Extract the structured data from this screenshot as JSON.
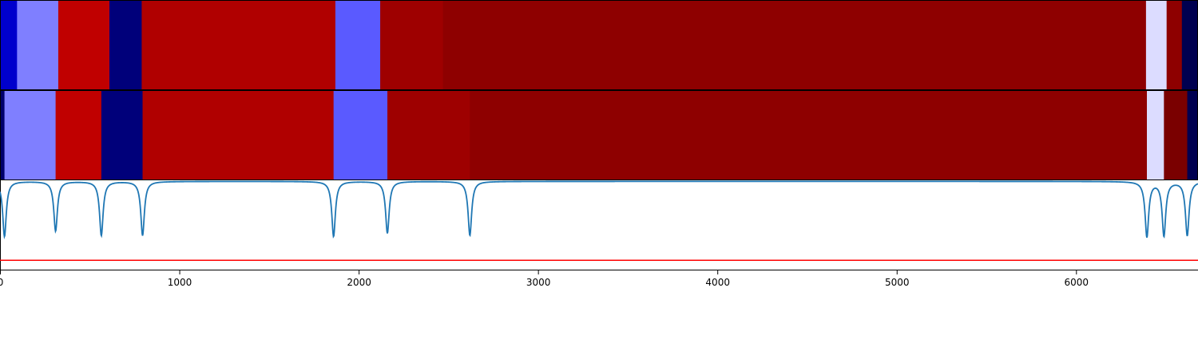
{
  "chart_data": {
    "type": "heatmap",
    "title": "",
    "xlabel": "",
    "ylabel": "",
    "xlim": [
      0,
      6680
    ],
    "x_ticks": [
      0,
      1000,
      2000,
      3000,
      4000,
      5000,
      6000
    ],
    "x_tick_labels": [
      "0",
      "1000",
      "2000",
      "3000",
      "4000",
      "5000",
      "6000"
    ],
    "tracks": [
      {
        "segments": [
          {
            "start": 0,
            "end": 95,
            "color": "#0000cc"
          },
          {
            "start": 95,
            "end": 325,
            "color": "#7f7fff"
          },
          {
            "start": 325,
            "end": 610,
            "color": "#c00000"
          },
          {
            "start": 610,
            "end": 790,
            "color": "#00007a"
          },
          {
            "start": 790,
            "end": 1870,
            "color": "#b00000"
          },
          {
            "start": 1870,
            "end": 2120,
            "color": "#5a5aff"
          },
          {
            "start": 2120,
            "end": 2470,
            "color": "#9e0000"
          },
          {
            "start": 2470,
            "end": 6390,
            "color": "#8e0000"
          },
          {
            "start": 6390,
            "end": 6505,
            "color": "#dcdcff"
          },
          {
            "start": 6505,
            "end": 6590,
            "color": "#8e0000"
          },
          {
            "start": 6590,
            "end": 6680,
            "color": "#000050"
          }
        ]
      },
      {
        "segments": [
          {
            "start": 0,
            "end": 25,
            "color": "#00006a"
          },
          {
            "start": 25,
            "end": 310,
            "color": "#7f7fff"
          },
          {
            "start": 310,
            "end": 565,
            "color": "#c00000"
          },
          {
            "start": 565,
            "end": 795,
            "color": "#00007a"
          },
          {
            "start": 795,
            "end": 1860,
            "color": "#b00000"
          },
          {
            "start": 1860,
            "end": 2160,
            "color": "#5a5aff"
          },
          {
            "start": 2160,
            "end": 2620,
            "color": "#9e0000"
          },
          {
            "start": 2620,
            "end": 6395,
            "color": "#8e0000"
          },
          {
            "start": 6395,
            "end": 6490,
            "color": "#dcdcff"
          },
          {
            "start": 6490,
            "end": 6620,
            "color": "#7a0000"
          },
          {
            "start": 6620,
            "end": 6680,
            "color": "#000050"
          }
        ]
      }
    ],
    "signal": {
      "color": "#1f77b4",
      "baseline": 0,
      "dip_depth": -1.0,
      "ylim": [
        -1.6,
        0.02
      ],
      "dips": [
        {
          "x": 25,
          "depth": -1.0
        },
        {
          "x": 310,
          "depth": -0.9
        },
        {
          "x": 565,
          "depth": -0.98
        },
        {
          "x": 795,
          "depth": -0.98
        },
        {
          "x": 1860,
          "depth": -1.0
        },
        {
          "x": 2160,
          "depth": -0.94
        },
        {
          "x": 2620,
          "depth": -0.98
        },
        {
          "x": 6395,
          "depth": -1.0
        },
        {
          "x": 6490,
          "depth": -0.98
        },
        {
          "x": 6620,
          "depth": -0.98
        }
      ]
    },
    "threshold": {
      "value": -1.43,
      "color": "#ff0000"
    },
    "grid": false,
    "legend": "none"
  }
}
